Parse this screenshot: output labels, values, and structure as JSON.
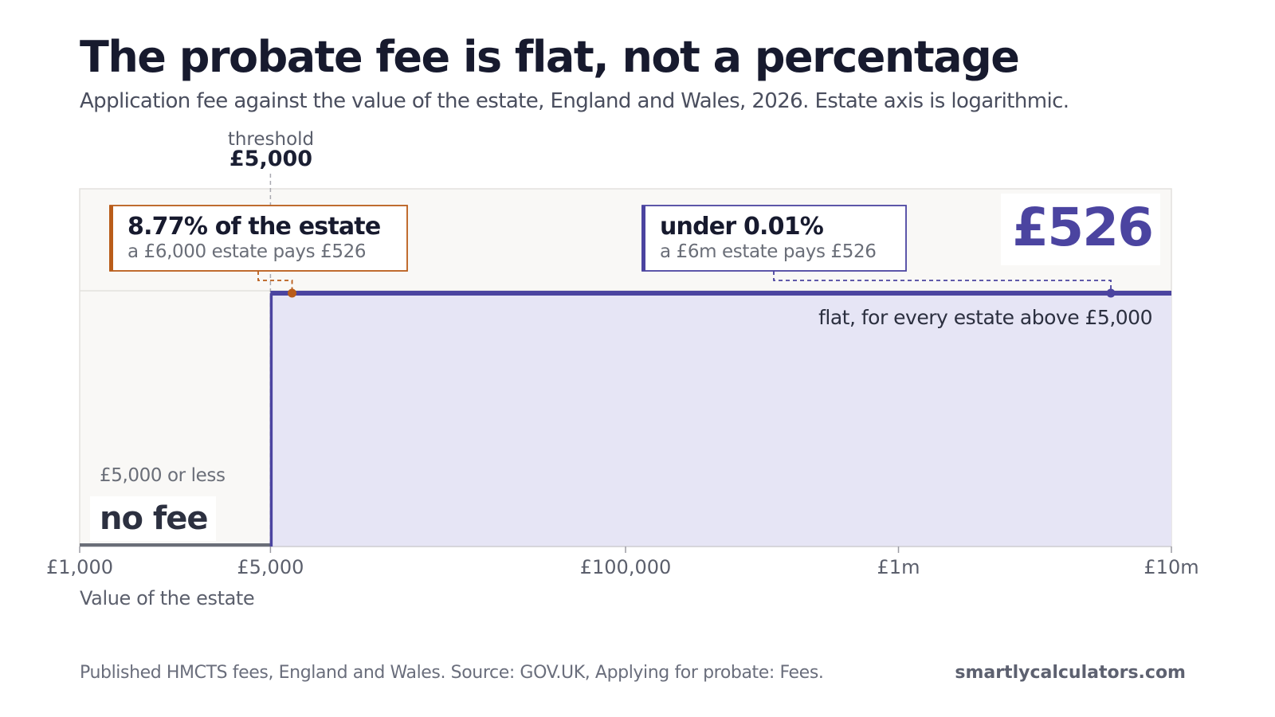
{
  "title": "The probate fee is flat, not a percentage",
  "subtitle": "Application fee against the value of the estate, England and Wales, 2026. Estate axis is logarithmic.",
  "footer": {
    "source": "Published HMCTS fees, England and Wales. Source: GOV.UK, Applying for probate: Fees.",
    "brand": "smartlycalculators.com"
  },
  "colors": {
    "fee_line": "#4b44a0",
    "fee_area": "#e6e5f5",
    "accent_orange": "#b95c1a",
    "plot_background": "#f9f8f6",
    "no_fee_line": "#6a6e78"
  },
  "chart_data": {
    "type": "area",
    "x_scale": "log",
    "xlabel": "Value of the estate",
    "xlim": [
      1000,
      10000000
    ],
    "ylim": [
      0,
      526
    ],
    "x_ticks": [
      {
        "value": 1000,
        "label": "£1,000"
      },
      {
        "value": 5000,
        "label": "£5,000"
      },
      {
        "value": 100000,
        "label": "£100,000"
      },
      {
        "value": 1000000,
        "label": "£1m"
      },
      {
        "value": 10000000,
        "label": "£10m"
      }
    ],
    "series": [
      {
        "points": [
          {
            "x": 1000,
            "y": 0
          },
          {
            "x": 5000,
            "y": 0
          },
          {
            "x": 5000,
            "y": 526
          },
          {
            "x": 10000000,
            "y": 526
          }
        ]
      }
    ],
    "threshold": {
      "x": 5000,
      "label": "threshold",
      "value_label": "£5,000"
    },
    "fee_label": "£526",
    "fee_note": "flat, for every estate above £5,000",
    "no_fee": {
      "caption": "£5,000 or less",
      "label": "no fee"
    },
    "callouts": [
      {
        "x": 6000,
        "y": 526,
        "headline": "8.77% of the estate",
        "detail": "a £6,000 estate pays £526"
      },
      {
        "x": 6000000,
        "y": 526,
        "headline": "under 0.01%",
        "detail": "a £6m estate pays £526"
      }
    ]
  }
}
